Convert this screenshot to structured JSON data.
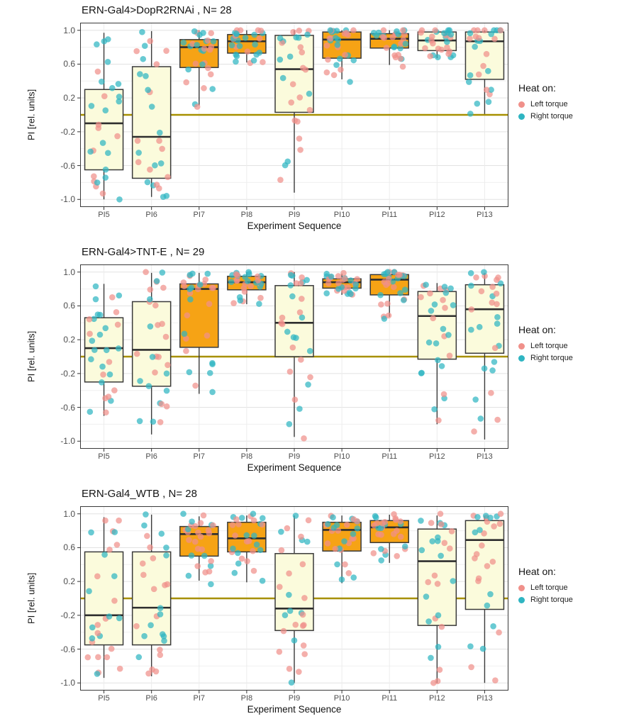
{
  "axes": {
    "x_label": "Experiment Sequence",
    "y_label": "PI [rel. units]",
    "x_categories": [
      "PI5",
      "PI6",
      "PI7",
      "PI8",
      "PI9",
      "PI10",
      "PI11",
      "PI12",
      "PI13"
    ],
    "y_ticks": [
      {
        "v": 1.0,
        "label": "1.0"
      },
      {
        "v": 0.6,
        "label": "0.6"
      },
      {
        "v": 0.2,
        "label": "0.2"
      },
      {
        "v": -0.2,
        "label": "-0.2"
      },
      {
        "v": -0.6,
        "label": "-0.6"
      },
      {
        "v": -1.0,
        "label": "-1.0"
      }
    ],
    "y_minor_ticks": [
      0.8,
      0.4,
      0.0,
      -0.4,
      -0.8
    ],
    "y_range": [
      -1.09,
      1.09
    ],
    "zero_line": 0
  },
  "legend": {
    "title": "Heat on:",
    "items": [
      {
        "label": "Left torque",
        "color": "#F0908A"
      },
      {
        "label": "Right torque",
        "color": "#2FB5C2"
      }
    ]
  },
  "style": {
    "box_fill_heat": "#F6A315",
    "box_fill_normal": "#FBFBDC",
    "box_stroke": "#3A3A3A",
    "median_color": "#2E2E2E",
    "zero_line_color": "#A79000",
    "grid_major": "#E2E2E2",
    "grid_minor": "#F0F0F0",
    "grid_vertical": "#ECECEC",
    "panel_border": "#3A3A3A",
    "point_alpha": 0.72
  },
  "chart_data": [
    {
      "type": "boxplot+jitter",
      "title": "ERN-Gal4>DopR2RNAi , N= 28",
      "n_points_per_group": 28,
      "boxes": [
        {
          "cat": "PI5",
          "whisker_low": -1.0,
          "q1": -0.65,
          "median": -0.1,
          "q3": 0.3,
          "whisker_high": 0.97,
          "heat_on": false
        },
        {
          "cat": "PI6",
          "whisker_low": -0.97,
          "q1": -0.75,
          "median": -0.26,
          "q3": 0.57,
          "whisker_high": 0.99,
          "heat_on": false
        },
        {
          "cat": "PI7",
          "whisker_low": 0.11,
          "q1": 0.56,
          "median": 0.8,
          "q3": 0.89,
          "whisker_high": 1.0,
          "heat_on": true
        },
        {
          "cat": "PI8",
          "whisker_low": 0.62,
          "q1": 0.73,
          "median": 0.87,
          "q3": 0.95,
          "whisker_high": 1.0,
          "heat_on": true
        },
        {
          "cat": "PI9",
          "whisker_low": -0.92,
          "q1": 0.03,
          "median": 0.54,
          "q3": 0.94,
          "whisker_high": 1.0,
          "heat_on": false
        },
        {
          "cat": "PI10",
          "whisker_low": 0.42,
          "q1": 0.67,
          "median": 0.89,
          "q3": 0.98,
          "whisker_high": 1.0,
          "heat_on": true
        },
        {
          "cat": "PI11",
          "whisker_low": 0.59,
          "q1": 0.79,
          "median": 0.9,
          "q3": 0.96,
          "whisker_high": 1.0,
          "heat_on": true
        },
        {
          "cat": "PI12",
          "whisker_low": 0.67,
          "q1": 0.76,
          "median": 0.88,
          "q3": 0.98,
          "whisker_high": 1.0,
          "heat_on": false
        },
        {
          "cat": "PI13",
          "whisker_low": 0.01,
          "q1": 0.42,
          "median": 0.87,
          "q3": 0.98,
          "whisker_high": 1.0,
          "heat_on": false
        }
      ]
    },
    {
      "type": "boxplot+jitter",
      "title": "ERN-Gal4>TNT-E , N= 29",
      "n_points_per_group": 29,
      "boxes": [
        {
          "cat": "PI5",
          "whisker_low": -0.7,
          "q1": -0.3,
          "median": 0.1,
          "q3": 0.46,
          "whisker_high": 0.86,
          "heat_on": false
        },
        {
          "cat": "PI6",
          "whisker_low": -0.92,
          "q1": -0.35,
          "median": 0.08,
          "q3": 0.65,
          "whisker_high": 0.99,
          "heat_on": false
        },
        {
          "cat": "PI7",
          "whisker_low": -0.44,
          "q1": 0.11,
          "median": 0.8,
          "q3": 0.86,
          "whisker_high": 0.99,
          "heat_on": true
        },
        {
          "cat": "PI8",
          "whisker_low": 0.62,
          "q1": 0.79,
          "median": 0.88,
          "q3": 0.95,
          "whisker_high": 1.0,
          "heat_on": true
        },
        {
          "cat": "PI9",
          "whisker_low": -0.95,
          "q1": 0.0,
          "median": 0.4,
          "q3": 0.84,
          "whisker_high": 1.0,
          "heat_on": false
        },
        {
          "cat": "PI10",
          "whisker_low": 0.73,
          "q1": 0.81,
          "median": 0.88,
          "q3": 0.92,
          "whisker_high": 0.98,
          "heat_on": true
        },
        {
          "cat": "PI11",
          "whisker_low": 0.47,
          "q1": 0.73,
          "median": 0.91,
          "q3": 0.97,
          "whisker_high": 1.0,
          "heat_on": true
        },
        {
          "cat": "PI12",
          "whisker_low": -0.8,
          "q1": -0.03,
          "median": 0.48,
          "q3": 0.77,
          "whisker_high": 0.87,
          "heat_on": false
        },
        {
          "cat": "PI13",
          "whisker_low": -0.98,
          "q1": 0.04,
          "median": 0.56,
          "q3": 0.85,
          "whisker_high": 0.99,
          "heat_on": false
        }
      ]
    },
    {
      "type": "boxplot+jitter",
      "title": "ERN-Gal4_WTB , N= 28",
      "n_points_per_group": 28,
      "boxes": [
        {
          "cat": "PI5",
          "whisker_low": -0.94,
          "q1": -0.55,
          "median": -0.2,
          "q3": 0.55,
          "whisker_high": 0.96,
          "heat_on": false
        },
        {
          "cat": "PI6",
          "whisker_low": -0.92,
          "q1": -0.55,
          "median": -0.11,
          "q3": 0.55,
          "whisker_high": 0.99,
          "heat_on": false
        },
        {
          "cat": "PI7",
          "whisker_low": 0.21,
          "q1": 0.5,
          "median": 0.76,
          "q3": 0.85,
          "whisker_high": 0.97,
          "heat_on": true
        },
        {
          "cat": "PI8",
          "whisker_low": 0.19,
          "q1": 0.55,
          "median": 0.71,
          "q3": 0.9,
          "whisker_high": 0.98,
          "heat_on": true
        },
        {
          "cat": "PI9",
          "whisker_low": -1.0,
          "q1": -0.38,
          "median": -0.12,
          "q3": 0.53,
          "whisker_high": 0.98,
          "heat_on": false
        },
        {
          "cat": "PI10",
          "whisker_low": 0.18,
          "q1": 0.56,
          "median": 0.81,
          "q3": 0.9,
          "whisker_high": 0.98,
          "heat_on": true
        },
        {
          "cat": "PI11",
          "whisker_low": 0.42,
          "q1": 0.66,
          "median": 0.84,
          "q3": 0.92,
          "whisker_high": 0.99,
          "heat_on": true
        },
        {
          "cat": "PI12",
          "whisker_low": -1.0,
          "q1": -0.32,
          "median": 0.44,
          "q3": 0.82,
          "whisker_high": 0.98,
          "heat_on": false
        },
        {
          "cat": "PI13",
          "whisker_low": -1.0,
          "q1": -0.13,
          "median": 0.69,
          "q3": 0.92,
          "whisker_high": 0.98,
          "heat_on": false
        }
      ]
    }
  ]
}
